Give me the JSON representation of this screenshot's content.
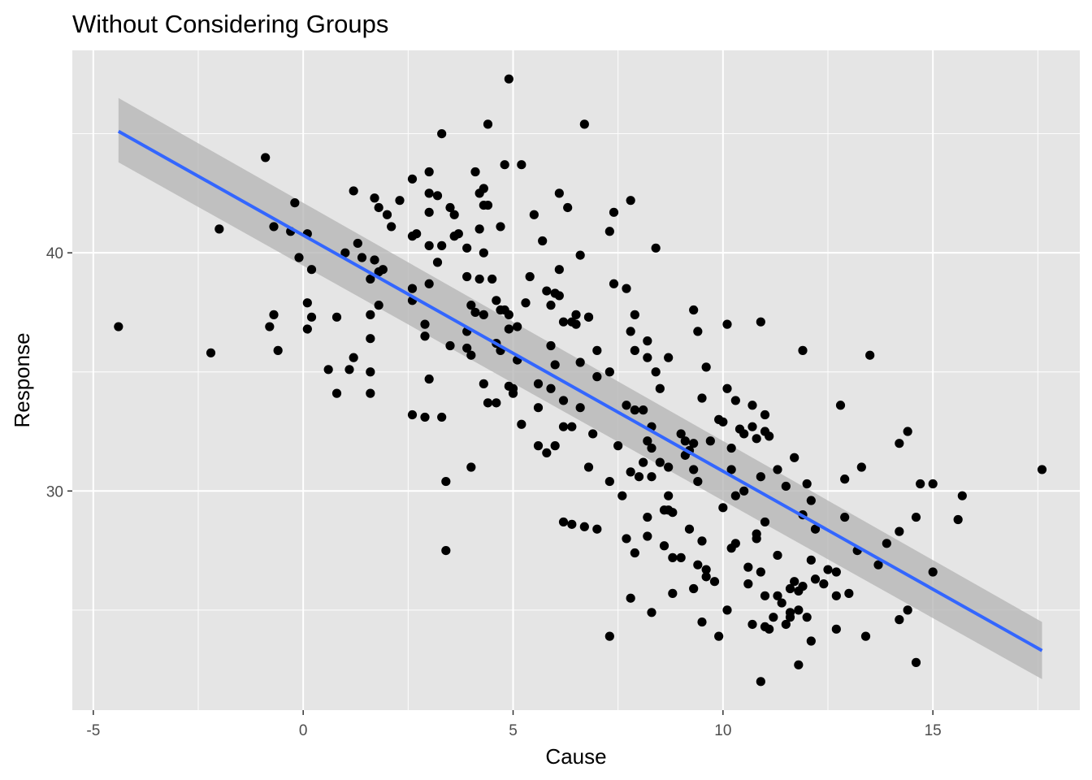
{
  "chart_data": {
    "type": "scatter",
    "title": "Without Considering Groups",
    "xlabel": "Cause",
    "ylabel": "Response",
    "xlim": [
      -5.5,
      18.5
    ],
    "ylim": [
      20.8,
      48.5
    ],
    "x_ticks": [
      -5,
      0,
      5,
      10,
      15
    ],
    "y_ticks": [
      30,
      40
    ],
    "x_tick_labels": [
      "-5",
      "0",
      "5",
      "10",
      "15"
    ],
    "y_tick_labels": [
      "30",
      "40"
    ],
    "grid": true,
    "colors": {
      "panel": "#e5e5e5",
      "grid": "#ffffff",
      "points": "#000000",
      "fit_line": "#3366ff",
      "confidence_band": "#b3b3b3"
    },
    "fit": {
      "x": [
        -4.4,
        17.6
      ],
      "y": [
        45.1,
        23.3
      ],
      "ci_upper": [
        46.5,
        24.5
      ],
      "ci_lower": [
        43.8,
        22.1
      ]
    },
    "points": [
      [
        -4.4,
        36.9
      ],
      [
        -2.2,
        35.8
      ],
      [
        -2.0,
        41.0
      ],
      [
        -0.9,
        44.0
      ],
      [
        -0.8,
        36.9
      ],
      [
        -0.7,
        37.4
      ],
      [
        -0.7,
        41.1
      ],
      [
        -0.6,
        35.9
      ],
      [
        -0.3,
        40.9
      ],
      [
        -0.2,
        42.1
      ],
      [
        -0.1,
        39.8
      ],
      [
        0.1,
        40.8
      ],
      [
        0.1,
        37.9
      ],
      [
        0.1,
        36.8
      ],
      [
        0.2,
        39.3
      ],
      [
        0.2,
        37.3
      ],
      [
        0.6,
        35.1
      ],
      [
        0.8,
        34.1
      ],
      [
        0.8,
        37.3
      ],
      [
        1.0,
        40.0
      ],
      [
        1.1,
        35.1
      ],
      [
        1.2,
        35.6
      ],
      [
        1.2,
        42.6
      ],
      [
        1.3,
        40.4
      ],
      [
        1.4,
        39.8
      ],
      [
        1.6,
        35.0
      ],
      [
        1.6,
        38.9
      ],
      [
        1.6,
        37.4
      ],
      [
        1.6,
        36.4
      ],
      [
        1.6,
        34.1
      ],
      [
        1.7,
        42.3
      ],
      [
        1.7,
        39.7
      ],
      [
        1.8,
        41.9
      ],
      [
        1.8,
        39.2
      ],
      [
        1.8,
        37.8
      ],
      [
        1.9,
        39.3
      ],
      [
        2.0,
        41.6
      ],
      [
        2.1,
        41.1
      ],
      [
        2.3,
        42.2
      ],
      [
        2.6,
        43.1
      ],
      [
        2.6,
        40.7
      ],
      [
        2.6,
        38.5
      ],
      [
        2.6,
        38.0
      ],
      [
        2.6,
        33.2
      ],
      [
        2.9,
        37.0
      ],
      [
        2.9,
        36.5
      ],
      [
        2.9,
        33.1
      ],
      [
        3.0,
        43.4
      ],
      [
        3.0,
        42.5
      ],
      [
        3.0,
        41.7
      ],
      [
        3.0,
        40.3
      ],
      [
        3.0,
        38.7
      ],
      [
        3.0,
        34.7
      ],
      [
        3.2,
        42.4
      ],
      [
        3.2,
        39.6
      ],
      [
        3.3,
        40.3
      ],
      [
        3.3,
        33.1
      ],
      [
        3.3,
        45.0
      ],
      [
        3.4,
        30.4
      ],
      [
        3.4,
        27.5
      ],
      [
        3.5,
        41.9
      ],
      [
        3.5,
        36.1
      ],
      [
        3.6,
        41.6
      ],
      [
        3.6,
        40.7
      ],
      [
        3.7,
        40.8
      ],
      [
        3.9,
        40.2
      ],
      [
        3.9,
        39.0
      ],
      [
        3.9,
        36.7
      ],
      [
        3.9,
        36.0
      ],
      [
        4.0,
        31.0
      ],
      [
        4.0,
        35.7
      ],
      [
        4.0,
        37.8
      ],
      [
        4.1,
        43.4
      ],
      [
        4.1,
        37.5
      ],
      [
        4.2,
        42.5
      ],
      [
        4.2,
        41.0
      ],
      [
        4.3,
        42.7
      ],
      [
        4.3,
        42.0
      ],
      [
        4.3,
        40.0
      ],
      [
        4.3,
        37.4
      ],
      [
        4.3,
        34.5
      ],
      [
        4.4,
        45.4
      ],
      [
        4.4,
        42.0
      ],
      [
        4.4,
        33.7
      ],
      [
        4.5,
        38.9
      ],
      [
        4.6,
        38.0
      ],
      [
        4.6,
        36.2
      ],
      [
        4.6,
        33.7
      ],
      [
        4.7,
        41.1
      ],
      [
        4.7,
        37.6
      ],
      [
        4.7,
        35.9
      ],
      [
        4.8,
        43.7
      ],
      [
        4.8,
        37.6
      ],
      [
        4.9,
        47.3
      ],
      [
        4.9,
        37.4
      ],
      [
        4.9,
        36.8
      ],
      [
        4.9,
        34.4
      ],
      [
        5.0,
        34.1
      ],
      [
        5.0,
        34.3
      ],
      [
        5.1,
        35.5
      ],
      [
        5.1,
        36.9
      ],
      [
        5.2,
        32.8
      ],
      [
        5.2,
        43.7
      ],
      [
        5.3,
        37.9
      ],
      [
        5.4,
        39.0
      ],
      [
        5.5,
        41.6
      ],
      [
        5.6,
        34.5
      ],
      [
        5.6,
        33.5
      ],
      [
        5.6,
        31.9
      ],
      [
        5.8,
        38.4
      ],
      [
        5.8,
        31.6
      ],
      [
        5.9,
        37.8
      ],
      [
        5.9,
        36.1
      ],
      [
        5.9,
        34.3
      ],
      [
        6.0,
        38.3
      ],
      [
        6.0,
        35.3
      ],
      [
        6.0,
        31.9
      ],
      [
        6.1,
        42.5
      ],
      [
        6.1,
        39.3
      ],
      [
        6.1,
        38.2
      ],
      [
        6.2,
        37.1
      ],
      [
        6.2,
        33.8
      ],
      [
        6.2,
        32.7
      ],
      [
        6.2,
        28.7
      ],
      [
        6.3,
        41.9
      ],
      [
        6.4,
        37.1
      ],
      [
        6.4,
        32.7
      ],
      [
        6.4,
        28.6
      ],
      [
        6.5,
        37.4
      ],
      [
        6.5,
        37.0
      ],
      [
        6.6,
        39.9
      ],
      [
        6.6,
        35.4
      ],
      [
        6.6,
        33.5
      ],
      [
        6.7,
        45.4
      ],
      [
        6.7,
        28.5
      ],
      [
        6.8,
        31.0
      ],
      [
        6.8,
        37.3
      ],
      [
        6.8,
        37.3
      ],
      [
        6.9,
        32.4
      ],
      [
        7.0,
        35.9
      ],
      [
        7.0,
        34.8
      ],
      [
        7.0,
        28.4
      ],
      [
        7.3,
        40.9
      ],
      [
        7.3,
        30.4
      ],
      [
        7.3,
        35.0
      ],
      [
        7.3,
        23.9
      ],
      [
        7.4,
        41.7
      ],
      [
        7.4,
        38.7
      ],
      [
        7.5,
        31.9
      ],
      [
        7.6,
        29.8
      ],
      [
        7.7,
        38.5
      ],
      [
        7.7,
        33.6
      ],
      [
        7.7,
        28.0
      ],
      [
        7.8,
        42.2
      ],
      [
        7.8,
        36.7
      ],
      [
        7.8,
        30.8
      ],
      [
        7.8,
        25.5
      ],
      [
        7.9,
        37.4
      ],
      [
        7.9,
        35.9
      ],
      [
        7.9,
        33.4
      ],
      [
        7.9,
        27.4
      ],
      [
        8.0,
        30.6
      ],
      [
        8.1,
        33.4
      ],
      [
        8.1,
        31.2
      ],
      [
        8.2,
        36.3
      ],
      [
        8.2,
        35.6
      ],
      [
        8.2,
        32.1
      ],
      [
        8.2,
        28.9
      ],
      [
        8.2,
        28.1
      ],
      [
        8.3,
        32.7
      ],
      [
        8.3,
        31.8
      ],
      [
        8.3,
        30.6
      ],
      [
        8.3,
        24.9
      ],
      [
        8.4,
        40.2
      ],
      [
        8.4,
        35.0
      ],
      [
        8.5,
        34.3
      ],
      [
        8.5,
        31.2
      ],
      [
        8.6,
        29.2
      ],
      [
        8.6,
        27.7
      ],
      [
        8.7,
        35.6
      ],
      [
        8.7,
        31.0
      ],
      [
        8.7,
        29.8
      ],
      [
        8.7,
        29.2
      ],
      [
        8.8,
        29.1
      ],
      [
        8.8,
        27.2
      ],
      [
        8.8,
        25.7
      ],
      [
        9.0,
        32.4
      ],
      [
        9.0,
        27.2
      ],
      [
        9.1,
        31.5
      ],
      [
        9.1,
        32.1
      ],
      [
        9.2,
        31.7
      ],
      [
        9.2,
        28.4
      ],
      [
        9.3,
        37.6
      ],
      [
        9.3,
        32.0
      ],
      [
        9.3,
        30.9
      ],
      [
        9.3,
        25.9
      ],
      [
        9.4,
        36.7
      ],
      [
        9.4,
        30.4
      ],
      [
        9.4,
        26.9
      ],
      [
        9.5,
        33.9
      ],
      [
        9.5,
        27.9
      ],
      [
        9.5,
        24.5
      ],
      [
        9.6,
        35.2
      ],
      [
        9.6,
        26.4
      ],
      [
        9.6,
        26.7
      ],
      [
        9.7,
        32.1
      ],
      [
        9.8,
        26.2
      ],
      [
        9.9,
        33.0
      ],
      [
        9.9,
        23.9
      ],
      [
        10.0,
        32.9
      ],
      [
        10.0,
        29.3
      ],
      [
        10.1,
        37.0
      ],
      [
        10.1,
        34.3
      ],
      [
        10.1,
        25.0
      ],
      [
        10.2,
        31.8
      ],
      [
        10.2,
        30.9
      ],
      [
        10.2,
        27.6
      ],
      [
        10.3,
        33.8
      ],
      [
        10.3,
        29.8
      ],
      [
        10.3,
        27.8
      ],
      [
        10.4,
        32.6
      ],
      [
        10.5,
        32.4
      ],
      [
        10.5,
        30.0
      ],
      [
        10.6,
        26.8
      ],
      [
        10.6,
        26.1
      ],
      [
        10.7,
        24.4
      ],
      [
        10.7,
        33.6
      ],
      [
        10.7,
        32.7
      ],
      [
        10.8,
        32.2
      ],
      [
        10.8,
        28.2
      ],
      [
        10.8,
        28.0
      ],
      [
        10.9,
        30.6
      ],
      [
        10.9,
        26.6
      ],
      [
        10.9,
        37.1
      ],
      [
        11.0,
        33.2
      ],
      [
        11.0,
        32.5
      ],
      [
        11.0,
        28.7
      ],
      [
        11.0,
        25.6
      ],
      [
        11.0,
        24.3
      ],
      [
        11.1,
        32.3
      ],
      [
        11.1,
        24.2
      ],
      [
        11.2,
        24.7
      ],
      [
        11.3,
        30.9
      ],
      [
        11.3,
        27.3
      ],
      [
        11.3,
        25.6
      ],
      [
        11.4,
        25.3
      ],
      [
        11.5,
        30.2
      ],
      [
        11.5,
        24.4
      ],
      [
        11.6,
        25.9
      ],
      [
        11.6,
        24.9
      ],
      [
        11.6,
        24.7
      ],
      [
        11.7,
        31.4
      ],
      [
        11.7,
        26.2
      ],
      [
        11.8,
        25.8
      ],
      [
        11.8,
        25.0
      ],
      [
        11.8,
        22.7
      ],
      [
        11.9,
        35.9
      ],
      [
        11.9,
        29.0
      ],
      [
        11.9,
        26.0
      ],
      [
        12.0,
        24.7
      ],
      [
        12.0,
        30.3
      ],
      [
        12.1,
        27.1
      ],
      [
        12.1,
        23.7
      ],
      [
        12.2,
        28.4
      ],
      [
        12.2,
        26.3
      ],
      [
        12.4,
        26.1
      ],
      [
        12.5,
        26.7
      ],
      [
        12.7,
        24.2
      ],
      [
        12.7,
        25.6
      ],
      [
        12.7,
        26.6
      ],
      [
        12.8,
        33.6
      ],
      [
        12.9,
        30.5
      ],
      [
        12.9,
        28.9
      ],
      [
        13.0,
        25.7
      ],
      [
        13.2,
        27.5
      ],
      [
        13.3,
        31.0
      ],
      [
        13.4,
        23.9
      ],
      [
        13.5,
        35.7
      ],
      [
        13.7,
        26.9
      ],
      [
        13.9,
        27.8
      ],
      [
        14.2,
        32.0
      ],
      [
        14.2,
        28.3
      ],
      [
        14.2,
        24.6
      ],
      [
        14.4,
        32.5
      ],
      [
        14.4,
        25.0
      ],
      [
        14.6,
        22.8
      ],
      [
        14.6,
        28.9
      ],
      [
        14.7,
        30.3
      ],
      [
        15.0,
        30.3
      ],
      [
        15.0,
        26.6
      ],
      [
        15.6,
        28.8
      ],
      [
        15.7,
        29.8
      ],
      [
        17.6,
        30.9
      ],
      [
        4.2,
        38.9
      ],
      [
        5.7,
        40.5
      ],
      [
        2.7,
        40.8
      ],
      [
        12.1,
        29.6
      ],
      [
        10.9,
        22.0
      ]
    ]
  }
}
